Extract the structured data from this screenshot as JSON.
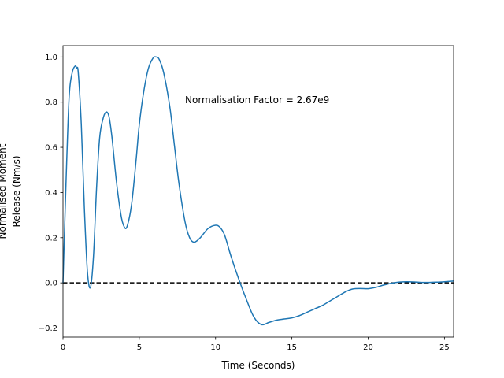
{
  "chart_data": {
    "type": "line",
    "xlabel": "Time (Seconds)",
    "ylabel_lines": [
      "Normalised Moment",
      "Release (Nm/s)"
    ],
    "xlim": [
      0,
      25.6
    ],
    "ylim": [
      -0.24,
      1.05
    ],
    "xticks": [
      0,
      5,
      10,
      15,
      20,
      25
    ],
    "yticks": [
      -0.2,
      0.0,
      0.2,
      0.4,
      0.6,
      0.8,
      1.0
    ],
    "ytick_labels": [
      "−0.2",
      "0.0",
      "0.2",
      "0.4",
      "0.6",
      "0.8",
      "1.0"
    ],
    "grid": false,
    "annotation": {
      "text": "Normalisation Factor = 2.67e9",
      "x": 8.0,
      "y": 0.81
    },
    "reference_line": {
      "y": 0.0,
      "style": "dashed",
      "color": "#000000"
    },
    "series": [
      {
        "color": "#1f77b4",
        "x": [
          0.0,
          0.2,
          0.4,
          0.6,
          0.8,
          0.9,
          1.0,
          1.2,
          1.4,
          1.6,
          1.8,
          2.0,
          2.2,
          2.4,
          2.6,
          2.8,
          3.0,
          3.2,
          3.5,
          3.8,
          4.0,
          4.2,
          4.5,
          4.8,
          5.0,
          5.3,
          5.6,
          5.9,
          6.1,
          6.3,
          6.6,
          7.0,
          7.3,
          7.6,
          8.0,
          8.3,
          8.6,
          9.0,
          9.5,
          10.0,
          10.3,
          10.6,
          11.0,
          11.5,
          12.0,
          12.5,
          13.0,
          13.5,
          14.0,
          14.5,
          15.0,
          15.5,
          16.0,
          16.5,
          17.0,
          17.5,
          18.0,
          18.5,
          19.0,
          19.5,
          20.0,
          20.5,
          21.0,
          21.5,
          22.0,
          22.5,
          23.0,
          23.5,
          24.0,
          24.5,
          25.0,
          25.6
        ],
        "y": [
          0.0,
          0.45,
          0.82,
          0.93,
          0.96,
          0.95,
          0.93,
          0.7,
          0.33,
          0.05,
          -0.02,
          0.12,
          0.42,
          0.64,
          0.72,
          0.755,
          0.74,
          0.65,
          0.45,
          0.3,
          0.25,
          0.25,
          0.35,
          0.55,
          0.7,
          0.85,
          0.95,
          0.995,
          1.0,
          0.99,
          0.93,
          0.78,
          0.61,
          0.44,
          0.27,
          0.2,
          0.18,
          0.2,
          0.24,
          0.255,
          0.245,
          0.21,
          0.12,
          0.02,
          -0.07,
          -0.15,
          -0.185,
          -0.175,
          -0.165,
          -0.16,
          -0.155,
          -0.145,
          -0.13,
          -0.115,
          -0.1,
          -0.08,
          -0.06,
          -0.04,
          -0.027,
          -0.025,
          -0.026,
          -0.02,
          -0.01,
          -0.002,
          0.003,
          0.005,
          0.004,
          0.002,
          0.002,
          0.003,
          0.005,
          0.008
        ]
      }
    ]
  }
}
